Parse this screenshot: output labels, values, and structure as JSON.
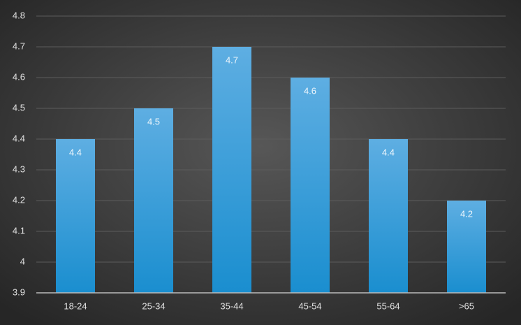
{
  "chart_data": {
    "type": "bar",
    "categories": [
      "18-24",
      "25-34",
      "35-44",
      "45-54",
      "55-64",
      ">65"
    ],
    "values": [
      4.4,
      4.5,
      4.7,
      4.6,
      4.4,
      4.2
    ],
    "color": "#2b9ad8",
    "ylim": [
      3.9,
      4.8
    ],
    "yticks": [
      3.9,
      4,
      4.1,
      4.2,
      4.3,
      4.4,
      4.5,
      4.6,
      4.7,
      4.8
    ],
    "grid": true
  }
}
